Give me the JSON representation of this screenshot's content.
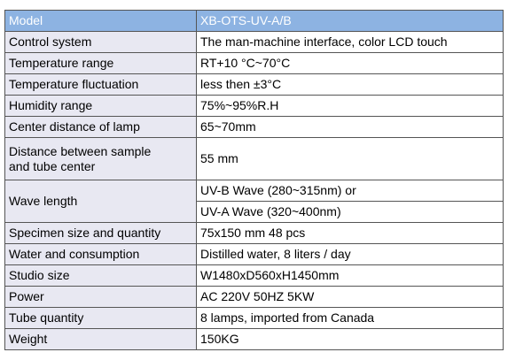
{
  "table": {
    "header": [
      "Model",
      "XB-OTS-UV-A/B"
    ],
    "rows": [
      [
        "Control system",
        "The man-machine interface, color LCD touch"
      ],
      [
        "Temperature range",
        "RT+10 °C~70°C"
      ],
      [
        "Temperature fluctuation",
        "less then ±3°C"
      ],
      [
        "Humidity range",
        "75%~95%R.H"
      ],
      [
        "Center distance of lamp",
        "65~70mm"
      ],
      [
        "Distance between sample\n and tube center",
        "55 mm"
      ],
      [
        "Wave length",
        "UV-B Wave (280~315nm) or",
        "UV-A Wave (320~400nm)"
      ],
      [
        "Specimen size and quantity",
        "75x150 mm 48 pcs"
      ],
      [
        "Water and consumption",
        "Distilled water, 8 liters / day"
      ],
      [
        "Studio size",
        "W1480xD560xH1450mm"
      ],
      [
        "Power",
        "AC 220V 50HZ   5KW"
      ],
      [
        "Tube quantity",
        "8 lamps, imported from Canada"
      ],
      [
        "Weight",
        "150KG"
      ]
    ]
  }
}
